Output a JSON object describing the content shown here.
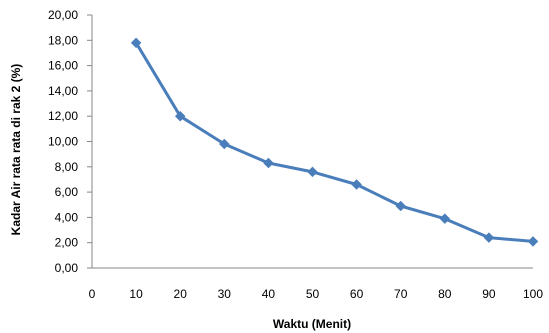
{
  "chart_data": {
    "type": "line",
    "title": "",
    "xlabel": "Waktu (Menit)",
    "ylabel": "Kadar Air rata rata di rak 2 (%)",
    "xlim": [
      0,
      100
    ],
    "ylim": [
      0,
      20
    ],
    "x_ticks": [
      "0",
      "10",
      "20",
      "30",
      "40",
      "50",
      "60",
      "70",
      "80",
      "90",
      "100"
    ],
    "y_ticks": [
      "0,00",
      "2,00",
      "4,00",
      "6,00",
      "8,00",
      "10,00",
      "12,00",
      "14,00",
      "16,00",
      "18,00",
      "20,00"
    ],
    "grid": false,
    "legend": "none",
    "series": [
      {
        "color": "#4a7ebb",
        "marker": "diamond",
        "x": [
          10,
          20,
          30,
          40,
          50,
          60,
          70,
          80,
          90,
          100
        ],
        "values": [
          17.8,
          12.0,
          9.8,
          8.3,
          7.6,
          6.6,
          4.9,
          3.9,
          2.4,
          2.1
        ]
      }
    ]
  }
}
